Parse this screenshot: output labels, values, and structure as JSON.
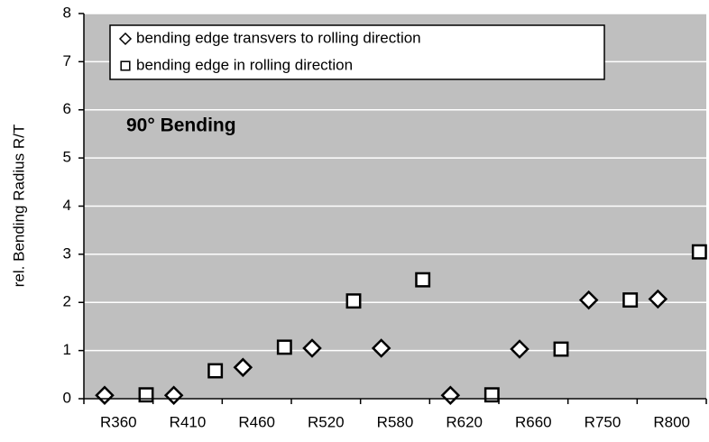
{
  "chart_data": {
    "type": "scatter",
    "ylabel": "rel. Bending Radius R/T",
    "annotation": "90° Bending",
    "categories": [
      "R360",
      "R410",
      "R460",
      "R520",
      "R580",
      "R620",
      "R660",
      "R750",
      "R800"
    ],
    "series": [
      {
        "name": "bending edge transvers to rolling direction",
        "marker": "diamond",
        "color": "#000000",
        "values": [
          0.07,
          0.07,
          0.65,
          1.05,
          1.05,
          0.07,
          1.03,
          2.05,
          2.07
        ]
      },
      {
        "name": "bending edge in rolling direction",
        "marker": "square",
        "color": "#000000",
        "values": [
          0.08,
          0.58,
          1.07,
          2.03,
          2.47,
          0.08,
          1.03,
          2.05,
          3.05
        ]
      }
    ],
    "ylim": [
      0,
      8
    ],
    "yticks": [
      0,
      1,
      2,
      3,
      4,
      5,
      6,
      7,
      8
    ],
    "grid": true
  }
}
